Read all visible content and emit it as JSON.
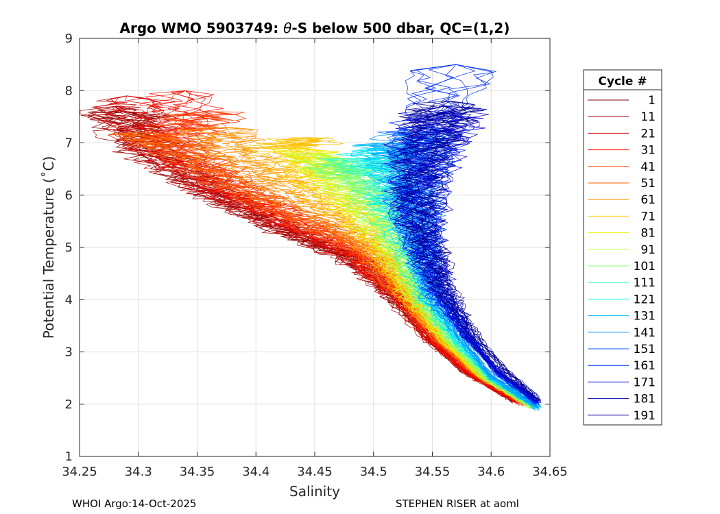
{
  "chart_data": {
    "type": "line",
    "title_prefix": "Argo WMO 5903749: ",
    "title_symbol": "θ",
    "title_suffix": "-S below 500 dbar,  QC=(1,2)",
    "xlabel": "Salinity",
    "ylabel": "Potential Temperature (˚C)",
    "xlim": [
      34.25,
      34.65
    ],
    "ylim": [
      1,
      9
    ],
    "xticks": [
      "34.25",
      "34.3",
      "34.35",
      "34.4",
      "34.45",
      "34.5",
      "34.55",
      "34.6",
      "34.65"
    ],
    "yticks": [
      "1",
      "2",
      "3",
      "4",
      "5",
      "6",
      "7",
      "8",
      "9"
    ],
    "grid": true,
    "legend": {
      "title": "Cycle #",
      "placement": "right",
      "entries": [
        {
          "label": "1",
          "color": "#800000"
        },
        {
          "label": "11",
          "color": "#a80000"
        },
        {
          "label": "21",
          "color": "#d00000"
        },
        {
          "label": "31",
          "color": "#f81000"
        },
        {
          "label": "41",
          "color": "#ff3800"
        },
        {
          "label": "51",
          "color": "#ff6000"
        },
        {
          "label": "61",
          "color": "#ff9000"
        },
        {
          "label": "71",
          "color": "#ffc000"
        },
        {
          "label": "81",
          "color": "#f0f000"
        },
        {
          "label": "91",
          "color": "#c0ff30"
        },
        {
          "label": "101",
          "color": "#80ff70"
        },
        {
          "label": "111",
          "color": "#40ffb0"
        },
        {
          "label": "121",
          "color": "#10f0f0"
        },
        {
          "label": "131",
          "color": "#00c0ff"
        },
        {
          "label": "141",
          "color": "#0090ff"
        },
        {
          "label": "151",
          "color": "#0060ff"
        },
        {
          "label": "161",
          "color": "#0030ff"
        },
        {
          "label": "171",
          "color": "#0000e0"
        },
        {
          "label": "181",
          "color": "#0000b8"
        },
        {
          "label": "191",
          "color": "#000090"
        }
      ]
    },
    "series_shape": [
      {
        "name": "1",
        "points": [
          [
            34.62,
            2.05
          ],
          [
            34.58,
            2.6
          ],
          [
            34.55,
            3.2
          ],
          [
            34.52,
            4.0
          ],
          [
            34.49,
            4.7
          ],
          [
            34.43,
            5.3
          ],
          [
            34.37,
            6.0
          ],
          [
            34.31,
            6.9
          ],
          [
            34.29,
            7.6
          ]
        ]
      },
      {
        "name": "11",
        "points": [
          [
            34.62,
            2.05
          ],
          [
            34.575,
            2.65
          ],
          [
            34.545,
            3.25
          ],
          [
            34.515,
            4.1
          ],
          [
            34.48,
            4.8
          ],
          [
            34.42,
            5.4
          ],
          [
            34.36,
            6.1
          ],
          [
            34.3,
            7.0
          ],
          [
            34.28,
            7.7
          ]
        ]
      },
      {
        "name": "21",
        "points": [
          [
            34.625,
            2.05
          ],
          [
            34.58,
            2.6
          ],
          [
            34.55,
            3.2
          ],
          [
            34.52,
            4.05
          ],
          [
            34.485,
            4.75
          ],
          [
            34.43,
            5.35
          ],
          [
            34.365,
            6.05
          ],
          [
            34.31,
            6.95
          ],
          [
            34.29,
            7.9
          ]
        ]
      },
      {
        "name": "31",
        "points": [
          [
            34.625,
            2.0
          ],
          [
            34.58,
            2.6
          ],
          [
            34.55,
            3.2
          ],
          [
            34.52,
            4.1
          ],
          [
            34.49,
            4.8
          ],
          [
            34.44,
            5.4
          ],
          [
            34.38,
            6.1
          ],
          [
            34.33,
            7.0
          ],
          [
            34.34,
            8.0
          ]
        ]
      },
      {
        "name": "41",
        "points": [
          [
            34.63,
            2.0
          ],
          [
            34.585,
            2.6
          ],
          [
            34.555,
            3.2
          ],
          [
            34.525,
            4.05
          ],
          [
            34.49,
            4.9
          ],
          [
            34.44,
            5.5
          ],
          [
            34.38,
            6.2
          ],
          [
            34.33,
            7.1
          ],
          [
            34.36,
            7.6
          ]
        ]
      },
      {
        "name": "51",
        "points": [
          [
            34.63,
            2.0
          ],
          [
            34.585,
            2.6
          ],
          [
            34.555,
            3.25
          ],
          [
            34.525,
            4.1
          ],
          [
            34.5,
            4.9
          ],
          [
            34.45,
            5.45
          ],
          [
            34.39,
            6.1
          ],
          [
            34.33,
            6.9
          ],
          [
            34.3,
            7.2
          ]
        ]
      },
      {
        "name": "61",
        "points": [
          [
            34.63,
            2.0
          ],
          [
            34.59,
            2.55
          ],
          [
            34.56,
            3.2
          ],
          [
            34.53,
            4.0
          ],
          [
            34.505,
            4.8
          ],
          [
            34.47,
            5.5
          ],
          [
            34.42,
            6.2
          ],
          [
            34.38,
            6.8
          ],
          [
            34.37,
            7.3
          ]
        ]
      },
      {
        "name": "71",
        "points": [
          [
            34.635,
            1.95
          ],
          [
            34.59,
            2.55
          ],
          [
            34.56,
            3.2
          ],
          [
            34.53,
            4.0
          ],
          [
            34.51,
            4.8
          ],
          [
            34.48,
            5.6
          ],
          [
            34.44,
            6.3
          ],
          [
            34.42,
            6.9
          ],
          [
            34.45,
            7.1
          ]
        ]
      },
      {
        "name": "81",
        "points": [
          [
            34.635,
            1.95
          ],
          [
            34.59,
            2.55
          ],
          [
            34.56,
            3.2
          ],
          [
            34.535,
            4.0
          ],
          [
            34.515,
            4.8
          ],
          [
            34.49,
            5.6
          ],
          [
            34.46,
            6.3
          ],
          [
            34.44,
            6.9
          ]
        ]
      },
      {
        "name": "91",
        "points": [
          [
            34.635,
            1.95
          ],
          [
            34.595,
            2.55
          ],
          [
            34.565,
            3.2
          ],
          [
            34.535,
            4.0
          ],
          [
            34.52,
            4.85
          ],
          [
            34.5,
            5.6
          ],
          [
            34.47,
            6.3
          ],
          [
            34.45,
            6.8
          ]
        ]
      },
      {
        "name": "101",
        "points": [
          [
            34.635,
            1.95
          ],
          [
            34.595,
            2.5
          ],
          [
            34.565,
            3.2
          ],
          [
            34.54,
            4.0
          ],
          [
            34.525,
            4.9
          ],
          [
            34.505,
            5.7
          ],
          [
            34.485,
            6.3
          ],
          [
            34.46,
            6.6
          ]
        ]
      },
      {
        "name": "111",
        "points": [
          [
            34.64,
            1.95
          ],
          [
            34.6,
            2.5
          ],
          [
            34.57,
            3.2
          ],
          [
            34.545,
            4.0
          ],
          [
            34.53,
            4.9
          ],
          [
            34.515,
            5.7
          ],
          [
            34.5,
            6.4
          ],
          [
            34.48,
            6.7
          ]
        ]
      },
      {
        "name": "121",
        "points": [
          [
            34.64,
            1.95
          ],
          [
            34.6,
            2.5
          ],
          [
            34.57,
            3.2
          ],
          [
            34.545,
            4.0
          ],
          [
            34.535,
            4.9
          ],
          [
            34.52,
            5.8
          ],
          [
            34.51,
            6.5
          ],
          [
            34.5,
            6.9
          ]
        ]
      },
      {
        "name": "131",
        "points": [
          [
            34.64,
            1.9
          ],
          [
            34.6,
            2.5
          ],
          [
            34.575,
            3.2
          ],
          [
            34.55,
            4.0
          ],
          [
            34.54,
            4.9
          ],
          [
            34.53,
            5.8
          ],
          [
            34.52,
            6.6
          ],
          [
            34.51,
            7.0
          ]
        ]
      },
      {
        "name": "141",
        "points": [
          [
            34.64,
            1.95
          ],
          [
            34.6,
            2.55
          ],
          [
            34.575,
            3.25
          ],
          [
            34.55,
            4.05
          ],
          [
            34.54,
            4.9
          ],
          [
            34.535,
            5.8
          ],
          [
            34.53,
            6.7
          ],
          [
            34.535,
            7.2
          ]
        ]
      },
      {
        "name": "151",
        "points": [
          [
            34.64,
            2.0
          ],
          [
            34.605,
            2.6
          ],
          [
            34.58,
            3.3
          ],
          [
            34.555,
            4.1
          ],
          [
            34.54,
            4.95
          ],
          [
            34.535,
            5.9
          ],
          [
            34.54,
            6.8
          ],
          [
            34.54,
            7.3
          ]
        ]
      },
      {
        "name": "161",
        "points": [
          [
            34.64,
            2.0
          ],
          [
            34.605,
            2.6
          ],
          [
            34.58,
            3.3
          ],
          [
            34.555,
            4.1
          ],
          [
            34.545,
            5.0
          ],
          [
            34.535,
            5.9
          ],
          [
            34.545,
            6.9
          ],
          [
            34.57,
            8.5
          ]
        ]
      },
      {
        "name": "171",
        "points": [
          [
            34.64,
            2.05
          ],
          [
            34.605,
            2.65
          ],
          [
            34.58,
            3.3
          ],
          [
            34.56,
            4.1
          ],
          [
            34.545,
            5.0
          ],
          [
            34.54,
            6.0
          ],
          [
            34.55,
            7.0
          ],
          [
            34.565,
            7.6
          ]
        ]
      },
      {
        "name": "181",
        "points": [
          [
            34.64,
            2.05
          ],
          [
            34.605,
            2.65
          ],
          [
            34.58,
            3.3
          ],
          [
            34.56,
            4.15
          ],
          [
            34.545,
            5.0
          ],
          [
            34.535,
            6.0
          ],
          [
            34.545,
            6.9
          ],
          [
            34.56,
            7.7
          ]
        ]
      },
      {
        "name": "191",
        "points": [
          [
            34.64,
            2.1
          ],
          [
            34.61,
            2.7
          ],
          [
            34.585,
            3.35
          ],
          [
            34.56,
            4.2
          ],
          [
            34.545,
            5.05
          ],
          [
            34.535,
            6.0
          ],
          [
            34.545,
            7.0
          ],
          [
            34.565,
            7.8
          ]
        ]
      }
    ]
  },
  "footer": {
    "left": "WHOI Argo:14-Oct-2025",
    "right": "STEPHEN RISER at aoml"
  }
}
